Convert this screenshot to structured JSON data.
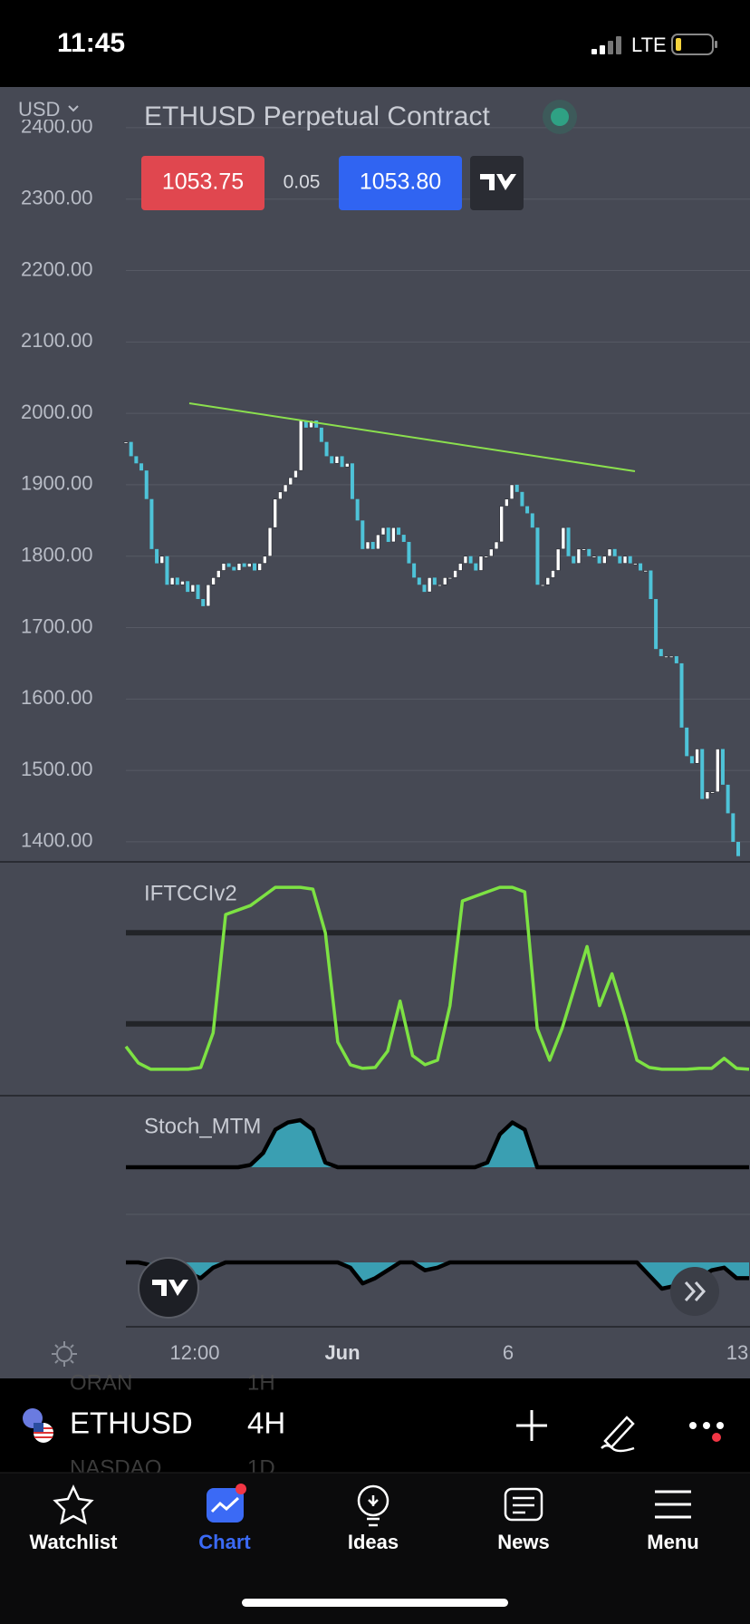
{
  "status_bar": {
    "time": "11:45",
    "network": "LTE"
  },
  "header": {
    "currency": "USD",
    "symbol_title": "ETHUSD Perpetual Contract",
    "bid": "1053.75",
    "spread": "0.05",
    "ask": "1053.80"
  },
  "chart_data": [
    {
      "type": "candlestick",
      "up_color": "#ffffff",
      "down_color": "#4ec3d8",
      "values": [
        1960,
        1940,
        1930,
        1920,
        1880,
        1810,
        1790,
        1800,
        1760,
        1770,
        1760,
        1765,
        1750,
        1760,
        1740,
        1730,
        1760,
        1770,
        1780,
        1790,
        1785,
        1780,
        1790,
        1785,
        1790,
        1780,
        1790,
        1800,
        1840,
        1880,
        1890,
        1900,
        1910,
        1920,
        1990,
        1980,
        1990,
        1980,
        1960,
        1940,
        1930,
        1940,
        1925,
        1930,
        1880,
        1850,
        1810,
        1820,
        1810,
        1830,
        1840,
        1820,
        1840,
        1830,
        1820,
        1790,
        1770,
        1760,
        1750,
        1770,
        1760,
        1760,
        1770,
        1770,
        1780,
        1790,
        1800,
        1790,
        1780,
        1800,
        1800,
        1810,
        1820,
        1870,
        1880,
        1900,
        1890,
        1870,
        1860,
        1840,
        1760,
        1760,
        1770,
        1780,
        1810,
        1840,
        1800,
        1790,
        1810,
        1810,
        1800,
        1800,
        1790,
        1800,
        1810,
        1800,
        1790,
        1800,
        1790,
        1790,
        1780,
        1780,
        1740,
        1670,
        1660,
        1660,
        1660,
        1650,
        1560,
        1520,
        1510,
        1530,
        1460,
        1470,
        1470,
        1530,
        1480,
        1440,
        1400,
        1380
      ],
      "ylim": [
        1372,
        2457
      ],
      "yticks": [
        {
          "value": 1400,
          "label": "1400.00"
        },
        {
          "value": 1500,
          "label": "1500.00"
        },
        {
          "value": 1600,
          "label": "1600.00"
        },
        {
          "value": 1700,
          "label": "1700.00"
        },
        {
          "value": 1800,
          "label": "1800.00"
        },
        {
          "value": 1900,
          "label": "1900.00"
        },
        {
          "value": 2000,
          "label": "2000.00"
        },
        {
          "value": 2100,
          "label": "2100.00"
        },
        {
          "value": 2200,
          "label": "2200.00"
        },
        {
          "value": 2300,
          "label": "2300.00"
        },
        {
          "value": 2400,
          "label": "2400.00"
        }
      ],
      "grid": true
    },
    {
      "type": "line",
      "title": "IFTCCIv2",
      "color": "#7de243",
      "values": [
        -0.75,
        -0.93,
        -1,
        -1,
        -1,
        -1,
        -0.98,
        -0.6,
        0.7,
        0.75,
        0.8,
        0.9,
        1,
        1,
        1,
        0.98,
        0.5,
        -0.7,
        -0.95,
        -0.99,
        -0.98,
        -0.8,
        -0.25,
        -0.85,
        -0.95,
        -0.9,
        -0.3,
        0.85,
        0.9,
        0.95,
        1,
        1,
        0.95,
        -0.55,
        -0.9,
        -0.55,
        -0.1,
        0.35,
        -0.3,
        0.05,
        -0.4,
        -0.9,
        -0.98,
        -1,
        -1,
        -1,
        -0.99,
        -0.99,
        -0.88,
        -0.99,
        -1
      ],
      "ylim": [
        -1.28,
        1.28
      ],
      "levels": [
        0.5,
        -0.5
      ]
    },
    {
      "type": "area",
      "title": "Stoch_MTM",
      "series": [
        {
          "color": "#3a9fb2",
          "ylim": [
            0,
            1
          ],
          "values": [
            0,
            0,
            0,
            0,
            0,
            0,
            0,
            0,
            0,
            0,
            0.05,
            0.3,
            0.8,
            0.95,
            1,
            0.8,
            0.1,
            0,
            0,
            0,
            0,
            0,
            0,
            0,
            0,
            0,
            0,
            0,
            0,
            0.1,
            0.7,
            0.95,
            0.8,
            0,
            0,
            0,
            0,
            0,
            0,
            0,
            0,
            0,
            0,
            0,
            0,
            0,
            0,
            0,
            0,
            0,
            0
          ]
        },
        {
          "color": "#3a9fb2",
          "ylim": [
            -1,
            0
          ],
          "values": [
            0,
            0,
            -0.1,
            -0.15,
            -0.2,
            -0.4,
            -0.6,
            -0.2,
            0,
            0,
            0,
            0,
            0,
            0,
            0,
            0,
            0,
            0,
            -0.2,
            -0.8,
            -0.6,
            -0.3,
            0,
            0,
            -0.3,
            -0.2,
            0,
            0,
            0,
            0,
            0,
            0,
            0,
            0,
            0,
            0,
            0,
            0,
            0,
            0,
            0,
            0,
            -0.5,
            -1,
            -0.9,
            -0.5,
            -0.6,
            -0.3,
            -0.2,
            -0.6,
            -0.6
          ]
        }
      ]
    }
  ],
  "time_axis": [
    "12:00",
    "Jun",
    "6",
    "13"
  ],
  "toolbar": {
    "symbol": "ETHUSD",
    "interval": "4H",
    "faded": [
      "ORAN",
      "1H",
      "NASDAQ",
      "1D"
    ]
  },
  "tabs": [
    "Watchlist",
    "Chart",
    "Ideas",
    "News",
    "Menu"
  ]
}
